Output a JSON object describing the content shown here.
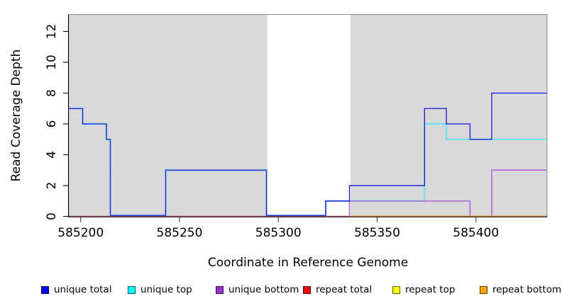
{
  "chart_data": {
    "type": "line",
    "step": true,
    "title": "",
    "xlabel": "Coordinate in Reference Genome",
    "ylabel": "Read Coverage Depth",
    "xlim": [
      585194,
      585436
    ],
    "ylim": [
      0,
      13.1
    ],
    "xticks": [
      585200,
      585250,
      585300,
      585350,
      585400
    ],
    "yticks": [
      0,
      2,
      4,
      6,
      8,
      10,
      12
    ],
    "grid": false,
    "legend_position": "bottom",
    "panel_color": "#D9D9D9",
    "panel_regions": [
      {
        "x0": 585194,
        "x1": 585294.5
      },
      {
        "x0": 585336.5,
        "x1": 585436
      }
    ],
    "series": [
      {
        "name": "unique total",
        "legend_color": "#0000EE",
        "line_color": "#2525DC",
        "line_width": 1.4,
        "draw_order": 5,
        "zero_lift": true,
        "x_end": 585436,
        "steps": [
          [
            585194,
            7
          ],
          [
            585201,
            6
          ],
          [
            585213,
            5
          ],
          [
            585215,
            0
          ],
          [
            585243,
            3
          ],
          [
            585294,
            0
          ],
          [
            585324,
            1
          ],
          [
            585336,
            2
          ],
          [
            585374,
            7
          ],
          [
            585385,
            6
          ],
          [
            585397,
            5
          ],
          [
            585408,
            8
          ]
        ]
      },
      {
        "name": "unique top",
        "legend_color": "#00FFFF",
        "line_color": "#6FE4EC",
        "line_width": 2.2,
        "draw_order": 0,
        "zero_lift": true,
        "x_end": 585436,
        "steps": [
          [
            585194,
            7
          ],
          [
            585201,
            6
          ],
          [
            585213,
            5
          ],
          [
            585215,
            0
          ],
          [
            585243,
            3
          ],
          [
            585294,
            0
          ],
          [
            585324,
            1
          ],
          [
            585374,
            6
          ],
          [
            585385,
            5
          ]
        ]
      },
      {
        "name": "unique bottom",
        "legend_color": "#9932CC",
        "line_color": "#AE68D9",
        "line_width": 1.6,
        "draw_order": 1,
        "zero_lift": false,
        "x_end": 585436,
        "steps": [
          [
            585194,
            0
          ],
          [
            585336,
            1
          ],
          [
            585397,
            0
          ],
          [
            585408,
            3
          ]
        ]
      },
      {
        "name": "repeat total",
        "legend_color": "#FF0000",
        "line_color": "#D65A70",
        "line_width": 1.5,
        "draw_order": 3,
        "zero_lift": false,
        "x_end": 585436,
        "steps": [
          [
            585194,
            0
          ]
        ]
      },
      {
        "name": "repeat top",
        "legend_color": "#FFFF00",
        "line_color": "#FFEB3B",
        "line_width": 1.2,
        "draw_order": 2,
        "zero_lift": false,
        "x_end": 585436,
        "steps": [
          [
            585194,
            0
          ]
        ]
      },
      {
        "name": "repeat bottom",
        "legend_color": "#FFA500",
        "line_color": "#FFA028",
        "line_width": 1.7,
        "draw_order": 4,
        "zero_lift": false,
        "x_end": 585436,
        "steps": [
          [
            585336,
            0
          ]
        ]
      }
    ]
  }
}
